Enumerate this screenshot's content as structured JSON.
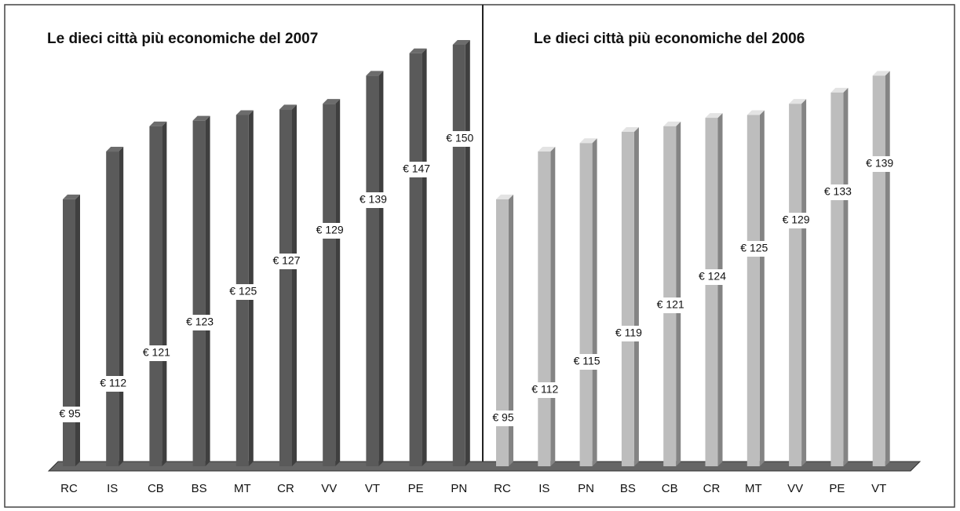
{
  "chart_data": [
    {
      "type": "bar",
      "title": "Le dieci città più economiche del 2007",
      "categories": [
        "RC",
        "IS",
        "CB",
        "BS",
        "MT",
        "CR",
        "VV",
        "VT",
        "PE",
        "PN"
      ],
      "values": [
        95,
        112,
        121,
        123,
        125,
        127,
        129,
        139,
        147,
        150
      ],
      "value_labels": [
        "€ 95",
        "€ 112",
        "€ 121",
        "€ 123",
        "€ 125",
        "€ 127",
        "€ 129",
        "€ 139",
        "€ 147",
        "€ 150"
      ],
      "color": "#5a5a5a"
    },
    {
      "type": "bar",
      "title": "Le dieci città più economiche del 2006",
      "categories": [
        "RC",
        "IS",
        "PN",
        "BS",
        "CB",
        "CR",
        "MT",
        "VV",
        "PE",
        "VT"
      ],
      "values": [
        95,
        112,
        115,
        119,
        121,
        124,
        125,
        129,
        133,
        139
      ],
      "value_labels": [
        "€ 95",
        "€ 112",
        "€ 115",
        "€ 119",
        "€ 121",
        "€ 124",
        "€ 125",
        "€ 129",
        "€ 133",
        "€ 139"
      ],
      "color": "#bdbdbd"
    }
  ]
}
